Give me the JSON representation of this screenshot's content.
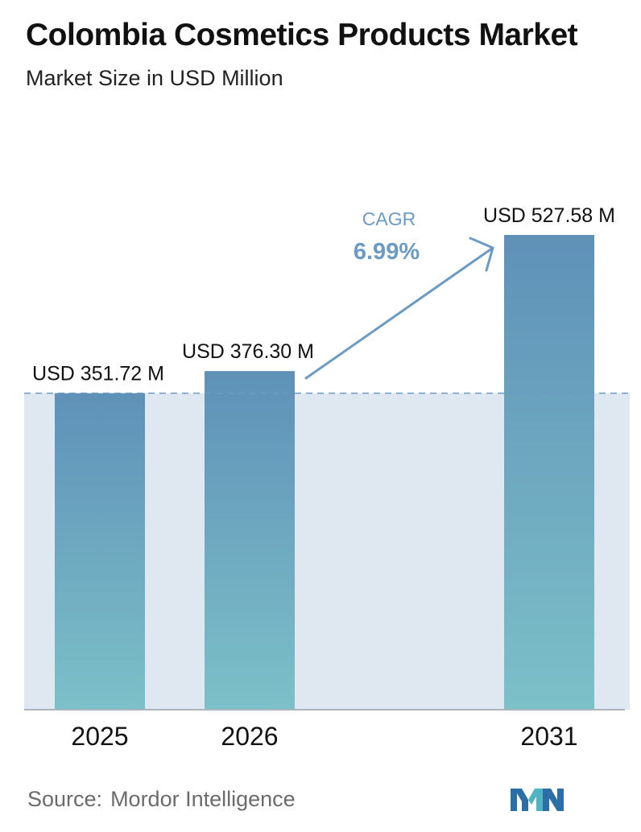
{
  "header": {
    "title": "Colombia Cosmetics Products Market",
    "subtitle": "Market Size in USD Million"
  },
  "chart_data": {
    "type": "bar",
    "categories": [
      "2025",
      "2026",
      "2031"
    ],
    "values": [
      351.72,
      376.3,
      527.58
    ],
    "value_labels": [
      "USD 351.72 M",
      "USD 376.30 M",
      "USD 527.58 M"
    ],
    "ylim": [
      0,
      527.58
    ],
    "grid": false,
    "annotation": {
      "label": "CAGR",
      "value": "6.99%"
    }
  },
  "footer": {
    "source_label": "Source:",
    "source_name": "Mordor Intelligence"
  },
  "colors": {
    "bar_top": "#5f91b8",
    "bar_bottom": "#7cc0c8",
    "band": "#dfe8f1",
    "accent": "#6b9bc3",
    "axis": "#a9b4bf"
  }
}
